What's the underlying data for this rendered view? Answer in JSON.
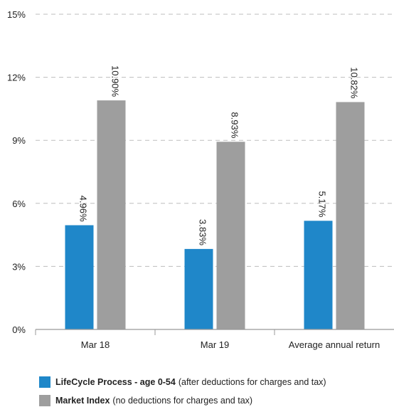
{
  "chart_data": {
    "type": "bar",
    "categories": [
      "Mar 18",
      "Mar 19",
      "Average annual return"
    ],
    "series": [
      {
        "name": "LifeCycle Process - age 0-54",
        "values": [
          4.96,
          3.83,
          5.17
        ],
        "labels": [
          "4.96%",
          "3.83%",
          "5.17%"
        ],
        "color": "#1f87c9"
      },
      {
        "name": "Market Index",
        "values": [
          10.9,
          8.93,
          10.82
        ],
        "labels": [
          "10.90%",
          "8.93%",
          "10.82%"
        ],
        "color": "#9e9e9e"
      }
    ],
    "ylim": [
      0,
      15
    ],
    "yticks": [
      0,
      3,
      6,
      9,
      12,
      15
    ],
    "ytick_labels": [
      "0%",
      "3%",
      "6%",
      "9%",
      "12%",
      "15%"
    ],
    "grid": true,
    "legend_position": "bottom-left"
  },
  "legend": [
    {
      "name": "LifeCycle Process - age 0-54",
      "note": "(after deductions for charges and tax)",
      "color": "#1f87c9"
    },
    {
      "name": "Market Index",
      "note": "(no deductions for charges and tax)",
      "color": "#9e9e9e"
    }
  ]
}
